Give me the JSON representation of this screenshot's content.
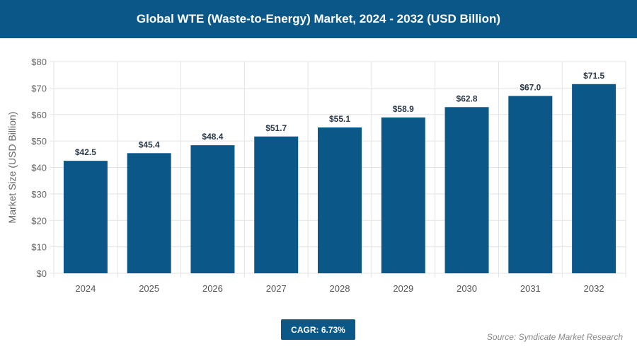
{
  "header": {
    "title": "Global WTE (Waste-to-Energy) Market, 2024 - 2032 (USD Billion)"
  },
  "chart_data": {
    "type": "bar",
    "title": "Global WTE (Waste-to-Energy) Market, 2024 - 2032 (USD Billion)",
    "categories": [
      "2024",
      "2025",
      "2026",
      "2027",
      "2028",
      "2029",
      "2030",
      "2031",
      "2032"
    ],
    "values": [
      42.5,
      45.4,
      48.4,
      51.7,
      55.1,
      58.9,
      62.8,
      67.0,
      71.5
    ],
    "data_labels": [
      "$42.5",
      "$45.4",
      "$48.4",
      "$51.7",
      "$55.1",
      "$58.9",
      "$62.8",
      "$67.0",
      "$71.5"
    ],
    "xlabel": "",
    "ylabel": "Market Size (USD Billion)",
    "ylim": [
      0,
      80
    ],
    "yticks": [
      "$0",
      "$10",
      "$20",
      "$30",
      "$40",
      "$50",
      "$60",
      "$70",
      "$80"
    ],
    "grid": true,
    "bar_color": "#0b5788"
  },
  "footer": {
    "cagr": "CAGR: 6.73%",
    "source": "Source: Syndicate Market Research"
  }
}
